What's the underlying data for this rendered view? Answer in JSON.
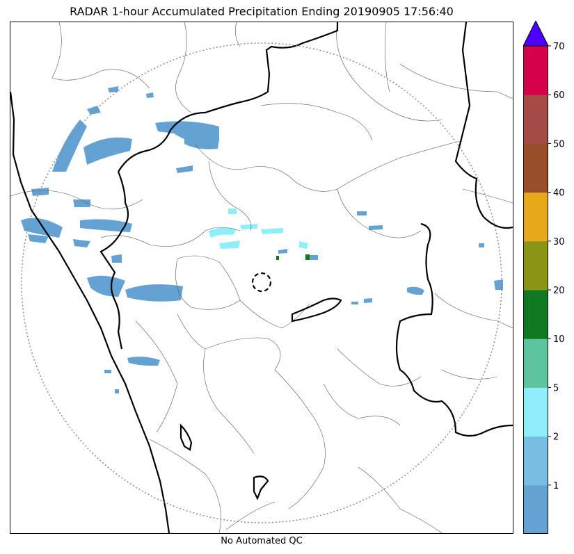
{
  "title": "RADAR 1-hour Accumulated Precipitation Ending 20190905 17:56:40",
  "footer": "No Automated QC",
  "colorbar": {
    "ticks": [
      "1",
      "2",
      "5",
      "10",
      "20",
      "30",
      "40",
      "50",
      "60",
      "70"
    ],
    "segments": [
      {
        "color": "#64a2d4"
      },
      {
        "color": "#78bde2"
      },
      {
        "color": "#8feefa"
      },
      {
        "color": "#5dc59d"
      },
      {
        "color": "#0f7a22"
      },
      {
        "color": "#8a9516"
      },
      {
        "color": "#e6a91a"
      },
      {
        "color": "#984e29"
      },
      {
        "color": "#a54a44"
      },
      {
        "color": "#d5024b"
      }
    ],
    "extend_color": "#4b00ff"
  },
  "map": {
    "radar_range_ring": "dotted",
    "radar_site_marker": "dashed circle",
    "precip_color_light": "#64a2d4",
    "precip_color_cyan": "#8feefa",
    "precip_color_green": "#0f7a22"
  }
}
